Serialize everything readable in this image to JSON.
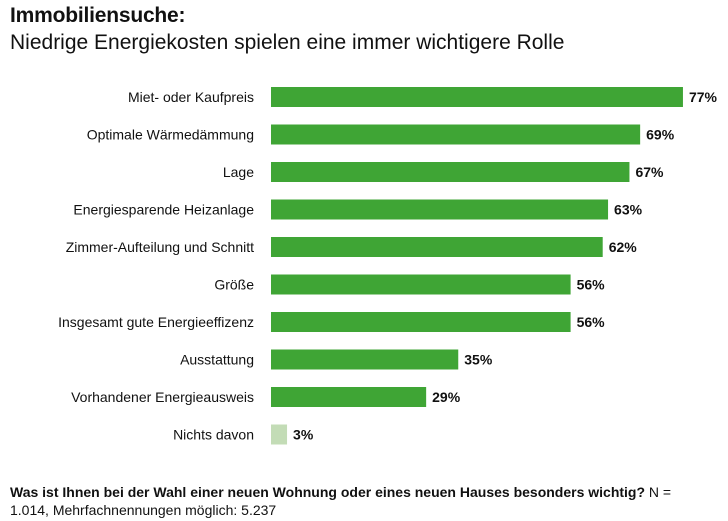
{
  "chart_data": {
    "type": "bar",
    "orientation": "horizontal",
    "title": "Immobiliensuche:",
    "subtitle": "Niedrige Energiekosten spielen eine immer wichtigere Rolle",
    "categories": [
      "Miet- oder Kaufpreis",
      "Optimale Wärmedämmung",
      "Lage",
      "Energiesparende  Heizanlage",
      "Zimmer-Aufteilung und Schnitt",
      "Größe",
      "Insgesamt gute Energieeffizenz",
      "Ausstattung",
      "Vorhandener Energieausweis",
      "Nichts davon"
    ],
    "values": [
      77,
      69,
      67,
      63,
      62,
      56,
      56,
      35,
      29,
      3
    ],
    "value_labels": [
      "77%",
      "69%",
      "67%",
      "63%",
      "62%",
      "56%",
      "56%",
      "35%",
      "29%",
      "3%"
    ],
    "unit": "%",
    "xlim": [
      0,
      100
    ],
    "grid": false,
    "colors": {
      "bar": "#3fa535",
      "bar_muted": "#c3dcb6"
    },
    "muted_categories": [
      "Nichts davon"
    ]
  },
  "footer": {
    "question": "Was ist Ihnen bei der Wahl einer neuen Wohnung oder eines neuen Hauses besonders wichtig?",
    "note": " N = 1.014, Mehrfachnennungen möglich: 5.237"
  }
}
